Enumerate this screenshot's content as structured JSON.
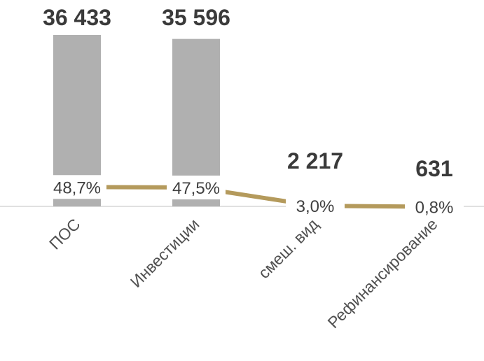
{
  "chart_data": {
    "type": "bar",
    "categories": [
      "ПОС",
      "Инвестиции",
      "смеш. вид",
      "Рефинансирование"
    ],
    "values": [
      36433,
      35596,
      2217,
      631
    ],
    "value_labels": [
      "36 433",
      "35 596",
      "2 217",
      "631"
    ],
    "line_series": {
      "values": [
        48.7,
        47.5,
        3.0,
        0.8
      ],
      "labels": [
        "48,7%",
        "47,5%",
        "3,0%",
        "0,8%"
      ]
    },
    "title": "",
    "xlabel": "",
    "ylabel": "",
    "ylim": [
      0,
      40000
    ],
    "y2lim": [
      0,
      50
    ],
    "grid": false,
    "colors": {
      "bars": "#b0b0b0",
      "line": "#b49a5c",
      "baseline": "#d6d6d6"
    }
  }
}
